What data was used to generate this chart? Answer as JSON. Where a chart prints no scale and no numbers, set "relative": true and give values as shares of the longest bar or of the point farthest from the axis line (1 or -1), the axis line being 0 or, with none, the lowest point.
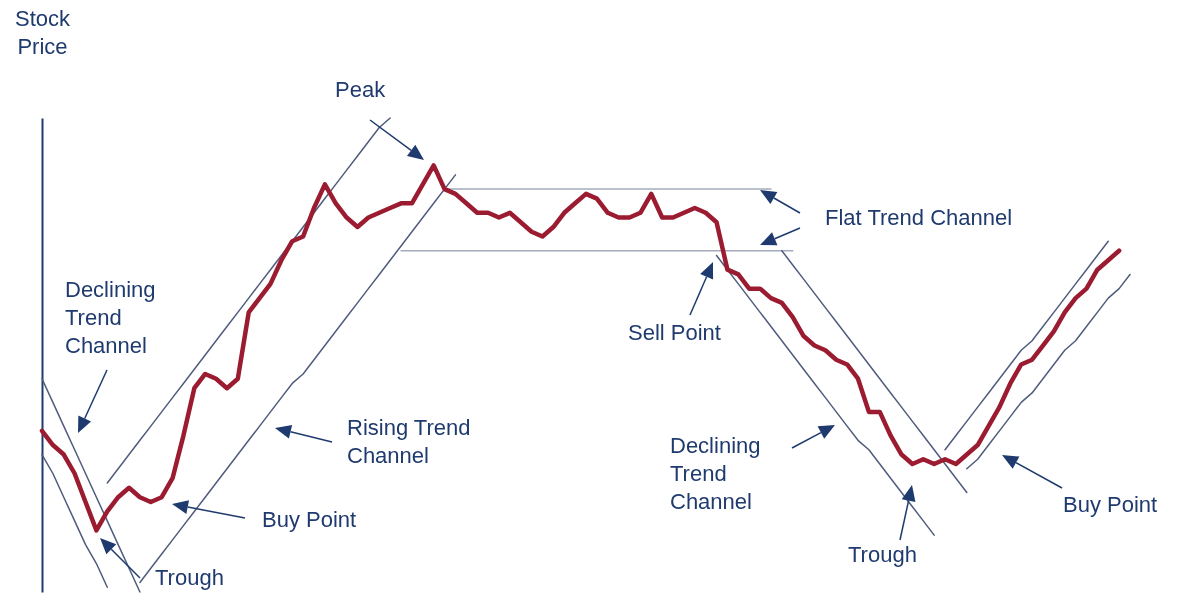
{
  "chart_data": {
    "type": "line",
    "ylabel": "Stock Price",
    "relative": true,
    "categories": [
      null,
      null,
      null,
      null,
      null,
      null,
      null,
      null,
      null,
      null,
      null,
      null,
      null,
      null,
      null,
      null,
      null,
      null,
      null,
      null,
      null,
      null,
      null,
      null,
      null,
      null,
      null,
      null,
      null,
      null,
      null,
      null,
      null,
      null,
      null,
      null,
      null,
      null,
      null,
      null,
      null,
      null,
      null,
      null,
      null,
      null,
      null,
      null,
      null,
      null,
      null,
      null,
      null,
      null,
      null,
      null,
      null,
      null,
      null,
      null,
      null,
      null,
      null,
      null,
      null,
      null,
      null,
      null,
      null,
      null,
      null,
      null,
      null,
      null,
      null,
      null,
      null,
      null,
      null,
      null,
      null,
      null,
      null,
      null,
      null,
      null,
      null,
      null,
      null,
      null,
      null,
      null,
      null,
      null,
      null,
      null,
      null,
      null,
      null,
      null,
      null
    ],
    "series": [
      {
        "color": "#4f5c7c",
        "values": [
          0.45,
          0.4,
          0.35,
          0.3,
          0.25,
          0.2,
          0.15,
          0.1,
          0.05,
          0,
          null,
          null,
          null,
          null,
          null,
          null,
          null,
          null,
          null,
          null,
          null,
          null,
          null,
          null,
          null,
          null,
          null,
          null,
          null,
          null,
          null,
          null,
          null,
          null,
          null,
          null,
          null,
          null,
          null,
          null,
          null,
          null,
          null,
          null,
          null,
          null,
          null,
          null,
          null,
          null,
          null,
          null,
          null,
          null,
          null,
          null,
          null,
          null,
          null,
          null,
          null,
          null,
          null,
          null,
          null,
          null,
          null,
          null,
          null,
          null,
          null,
          null,
          null,
          null,
          null,
          null,
          null,
          null,
          null,
          null,
          null,
          null,
          null,
          null,
          null,
          null,
          null,
          null,
          null,
          null,
          null,
          null,
          null,
          null,
          null,
          null,
          null,
          null,
          null,
          null,
          null
        ]
      },
      {
        "color": "#4f5c7c",
        "values": [
          0.29,
          0.25,
          0.2,
          0.15,
          0.1,
          0.06,
          0.01,
          null,
          null,
          null,
          null,
          null,
          null,
          null,
          null,
          null,
          null,
          null,
          null,
          null,
          null,
          null,
          null,
          null,
          null,
          null,
          null,
          null,
          null,
          null,
          null,
          null,
          null,
          null,
          null,
          null,
          null,
          null,
          null,
          null,
          null,
          null,
          null,
          null,
          null,
          null,
          null,
          null,
          null,
          null,
          null,
          null,
          null,
          null,
          null,
          null,
          null,
          null,
          null,
          null,
          null,
          null,
          null,
          null,
          null,
          null,
          null,
          null,
          null,
          null,
          null,
          null,
          null,
          null,
          null,
          null,
          null,
          null,
          null,
          null,
          null,
          null,
          null,
          null,
          null,
          null,
          null,
          null,
          null,
          null,
          null,
          null,
          null,
          null,
          null,
          null,
          null,
          null,
          null,
          null,
          null
        ]
      },
      {
        "color": "#4f5c7c",
        "values": [
          null,
          null,
          null,
          null,
          null,
          null,
          0.23,
          0.26,
          0.29,
          0.32,
          0.35,
          0.38,
          0.41,
          0.44,
          0.47,
          0.5,
          0.53,
          0.56,
          0.59,
          0.62,
          0.65,
          0.68,
          0.71,
          0.74,
          0.77,
          0.8,
          0.83,
          0.86,
          0.89,
          0.92,
          0.95,
          0.98,
          1.0,
          null,
          null,
          null,
          null,
          null,
          null,
          null,
          null,
          null,
          null,
          null,
          null,
          null,
          null,
          null,
          null,
          null,
          null,
          null,
          null,
          null,
          null,
          null,
          null,
          null,
          null,
          null,
          null,
          null,
          null,
          null,
          null,
          null,
          null,
          null,
          null,
          null,
          null,
          null,
          null,
          null,
          null,
          null,
          null,
          null,
          null,
          null,
          null,
          null,
          null,
          null,
          null,
          null,
          null,
          null,
          null,
          null,
          null,
          null,
          null,
          null,
          null,
          null,
          null,
          null,
          null,
          null,
          null
        ]
      },
      {
        "color": "#4f5c7c",
        "values": [
          null,
          null,
          null,
          null,
          null,
          null,
          null,
          null,
          null,
          0.02,
          0.05,
          0.08,
          0.11,
          0.14,
          0.17,
          0.2,
          0.23,
          0.26,
          0.29,
          0.32,
          0.35,
          0.38,
          0.41,
          0.44,
          0.46,
          0.49,
          0.52,
          0.55,
          0.58,
          0.61,
          0.64,
          0.67,
          0.7,
          0.73,
          0.76,
          0.79,
          0.82,
          0.85,
          0.88,
          null,
          null,
          null,
          null,
          null,
          null,
          null,
          null,
          null,
          null,
          null,
          null,
          null,
          null,
          null,
          null,
          null,
          null,
          null,
          null,
          null,
          null,
          null,
          null,
          null,
          null,
          null,
          null,
          null,
          null,
          null,
          null,
          null,
          null,
          null,
          null,
          null,
          null,
          null,
          null,
          null,
          null,
          null,
          null,
          null,
          null,
          null,
          null,
          null,
          null,
          null,
          null,
          null,
          null,
          null,
          null,
          null,
          null,
          null,
          null,
          null,
          null
        ]
      },
      {
        "color": "#a3abbd",
        "values": [
          null,
          null,
          null,
          null,
          null,
          null,
          null,
          null,
          null,
          null,
          null,
          null,
          null,
          null,
          null,
          null,
          null,
          null,
          null,
          null,
          null,
          null,
          null,
          null,
          null,
          null,
          null,
          null,
          null,
          null,
          null,
          null,
          null,
          null,
          null,
          null,
          null,
          0.85,
          0.85,
          0.85,
          0.85,
          0.85,
          0.85,
          0.85,
          0.85,
          0.85,
          0.85,
          0.85,
          0.85,
          0.85,
          0.85,
          0.85,
          0.85,
          0.85,
          0.85,
          0.85,
          0.85,
          0.85,
          0.85,
          0.85,
          0.85,
          0.85,
          0.85,
          0.85,
          0.85,
          0.85,
          0.85,
          0.85,
          null,
          null,
          null,
          null,
          null,
          null,
          null,
          null,
          null,
          null,
          null,
          null,
          null,
          null,
          null,
          null,
          null,
          null,
          null,
          null,
          null,
          null,
          null,
          null,
          null,
          null,
          null,
          null,
          null,
          null,
          null,
          null,
          null
        ]
      },
      {
        "color": "#a3abbd",
        "values": [
          null,
          null,
          null,
          null,
          null,
          null,
          null,
          null,
          null,
          null,
          null,
          null,
          null,
          null,
          null,
          null,
          null,
          null,
          null,
          null,
          null,
          null,
          null,
          null,
          null,
          null,
          null,
          null,
          null,
          null,
          null,
          null,
          null,
          0.72,
          0.72,
          0.72,
          0.72,
          0.72,
          0.72,
          0.72,
          0.72,
          0.72,
          0.72,
          0.72,
          0.72,
          0.72,
          0.72,
          0.72,
          0.72,
          0.72,
          0.72,
          0.72,
          0.72,
          0.72,
          0.72,
          0.72,
          0.72,
          0.72,
          0.72,
          0.72,
          0.72,
          0.72,
          0.72,
          0.72,
          0.72,
          0.72,
          0.72,
          0.72,
          0.72,
          0.72,
          null,
          null,
          null,
          null,
          null,
          null,
          null,
          null,
          null,
          null,
          null,
          null,
          null,
          null,
          null,
          null,
          null,
          null,
          null,
          null,
          null,
          null,
          null,
          null,
          null,
          null,
          null,
          null,
          null,
          null,
          null
        ]
      },
      {
        "color": "#4f5c7c",
        "values": [
          null,
          null,
          null,
          null,
          null,
          null,
          null,
          null,
          null,
          null,
          null,
          null,
          null,
          null,
          null,
          null,
          null,
          null,
          null,
          null,
          null,
          null,
          null,
          null,
          null,
          null,
          null,
          null,
          null,
          null,
          null,
          null,
          null,
          null,
          null,
          null,
          null,
          null,
          null,
          null,
          null,
          null,
          null,
          null,
          null,
          null,
          null,
          null,
          null,
          null,
          null,
          null,
          null,
          null,
          null,
          null,
          null,
          null,
          null,
          null,
          null,
          null,
          0.71,
          0.68,
          0.65,
          0.62,
          0.59,
          0.56,
          0.53,
          0.5,
          0.47,
          0.44,
          0.41,
          0.38,
          0.35,
          0.32,
          0.3,
          0.27,
          0.24,
          0.21,
          0.18,
          0.15,
          0.12,
          null,
          null,
          null,
          null,
          null,
          null,
          null,
          null,
          null,
          null,
          null,
          null,
          null,
          null,
          null,
          null,
          null,
          null
        ]
      },
      {
        "color": "#4f5c7c",
        "values": [
          null,
          null,
          null,
          null,
          null,
          null,
          null,
          null,
          null,
          null,
          null,
          null,
          null,
          null,
          null,
          null,
          null,
          null,
          null,
          null,
          null,
          null,
          null,
          null,
          null,
          null,
          null,
          null,
          null,
          null,
          null,
          null,
          null,
          null,
          null,
          null,
          null,
          null,
          null,
          null,
          null,
          null,
          null,
          null,
          null,
          null,
          null,
          null,
          null,
          null,
          null,
          null,
          null,
          null,
          null,
          null,
          null,
          null,
          null,
          null,
          null,
          null,
          null,
          null,
          null,
          null,
          null,
          null,
          0.72,
          0.69,
          0.66,
          0.63,
          0.6,
          0.57,
          0.54,
          0.51,
          0.48,
          0.45,
          0.42,
          0.39,
          0.36,
          0.33,
          0.3,
          0.27,
          0.24,
          0.21,
          null,
          null,
          null,
          null,
          null,
          null,
          null,
          null,
          null,
          null,
          null,
          null,
          null,
          null,
          null
        ]
      },
      {
        "color": "#4f5c7c",
        "values": [
          null,
          null,
          null,
          null,
          null,
          null,
          null,
          null,
          null,
          null,
          null,
          null,
          null,
          null,
          null,
          null,
          null,
          null,
          null,
          null,
          null,
          null,
          null,
          null,
          null,
          null,
          null,
          null,
          null,
          null,
          null,
          null,
          null,
          null,
          null,
          null,
          null,
          null,
          null,
          null,
          null,
          null,
          null,
          null,
          null,
          null,
          null,
          null,
          null,
          null,
          null,
          null,
          null,
          null,
          null,
          null,
          null,
          null,
          null,
          null,
          null,
          null,
          null,
          null,
          null,
          null,
          null,
          null,
          null,
          null,
          null,
          null,
          null,
          null,
          null,
          null,
          null,
          null,
          null,
          null,
          null,
          null,
          null,
          0.3,
          0.33,
          0.36,
          0.39,
          0.42,
          0.45,
          0.48,
          0.51,
          0.53,
          0.56,
          0.59,
          0.62,
          0.65,
          0.68,
          0.71,
          0.74,
          null,
          null
        ]
      },
      {
        "color": "#4f5c7c",
        "values": [
          null,
          null,
          null,
          null,
          null,
          null,
          null,
          null,
          null,
          null,
          null,
          null,
          null,
          null,
          null,
          null,
          null,
          null,
          null,
          null,
          null,
          null,
          null,
          null,
          null,
          null,
          null,
          null,
          null,
          null,
          null,
          null,
          null,
          null,
          null,
          null,
          null,
          null,
          null,
          null,
          null,
          null,
          null,
          null,
          null,
          null,
          null,
          null,
          null,
          null,
          null,
          null,
          null,
          null,
          null,
          null,
          null,
          null,
          null,
          null,
          null,
          null,
          null,
          null,
          null,
          null,
          null,
          null,
          null,
          null,
          null,
          null,
          null,
          null,
          null,
          null,
          null,
          null,
          null,
          null,
          null,
          null,
          null,
          null,
          null,
          0.26,
          0.28,
          0.31,
          0.34,
          0.37,
          0.4,
          0.42,
          0.45,
          0.48,
          0.51,
          0.53,
          0.56,
          0.59,
          0.62,
          0.64,
          0.67
        ]
      },
      {
        "color": "#9b1b30",
        "values": [
          0.34,
          0.31,
          0.29,
          0.25,
          0.19,
          0.13,
          0.17,
          0.2,
          0.22,
          0.2,
          0.19,
          0.2,
          0.24,
          0.33,
          0.43,
          0.46,
          0.45,
          0.43,
          0.45,
          0.59,
          0.62,
          0.65,
          0.7,
          0.74,
          0.75,
          0.81,
          0.86,
          0.82,
          0.79,
          0.77,
          0.79,
          0.8,
          0.81,
          0.82,
          0.82,
          0.86,
          0.9,
          0.85,
          0.84,
          0.82,
          0.8,
          0.8,
          0.79,
          0.8,
          0.78,
          0.76,
          0.75,
          0.77,
          0.8,
          0.82,
          0.84,
          0.83,
          0.8,
          0.79,
          0.79,
          0.8,
          0.84,
          0.79,
          0.79,
          0.8,
          0.81,
          0.8,
          0.78,
          0.68,
          0.67,
          0.64,
          0.64,
          0.62,
          0.61,
          0.58,
          0.54,
          0.52,
          0.51,
          0.49,
          0.48,
          0.45,
          0.38,
          0.38,
          0.33,
          0.29,
          0.27,
          0.28,
          0.27,
          0.28,
          0.27,
          0.29,
          0.31,
          0.35,
          0.39,
          0.44,
          0.48,
          0.49,
          0.52,
          0.55,
          0.59,
          0.62,
          0.64,
          0.68,
          0.7,
          0.72,
          null
        ]
      }
    ],
    "annotations": [
      "Peak",
      "Declining Trend Channel",
      "Trough",
      "Buy Point",
      "Rising Trend Channel",
      "Flat Trend Channel",
      "Sell Point",
      "Declining Trend Channel",
      "Trough",
      "Buy Point"
    ]
  }
}
